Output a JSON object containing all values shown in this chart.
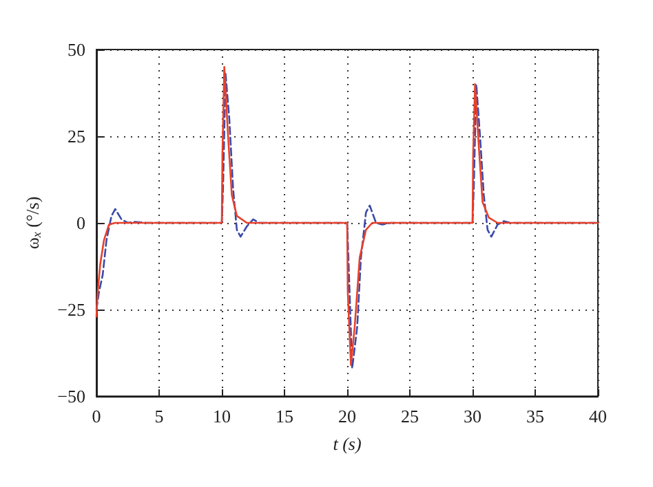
{
  "chart_data": {
    "type": "line",
    "xlabel": "t (s)",
    "ylabel": "ω$_{x}$ (°/s)",
    "xlim": [
      0,
      40
    ],
    "xticks": [
      0,
      5,
      10,
      15,
      20,
      25,
      30,
      35,
      40
    ],
    "ylim": [
      -50,
      50
    ],
    "yticks": [
      -50,
      -25,
      0,
      25,
      50
    ],
    "grid": true,
    "marker": "none",
    "series": [
      {
        "color": "#3b4aa8",
        "line_style": "dashed",
        "x": [
          0,
          0.2,
          0.5,
          0.8,
          1.2,
          1.5,
          2,
          2.5,
          3,
          4,
          10,
          10.1,
          10.3,
          10.6,
          10.9,
          11.2,
          11.5,
          12,
          12.5,
          13,
          20,
          20.1,
          20.4,
          20.8,
          21.1,
          21.5,
          21.8,
          22.3,
          22.8,
          23.5,
          30,
          30.1,
          30.3,
          30.6,
          30.9,
          31.2,
          31.5,
          32,
          32.5,
          33,
          40
        ],
        "values": [
          -25,
          -20,
          -15,
          -5,
          2,
          4,
          1,
          0,
          0.3,
          0,
          0,
          10,
          43,
          30,
          10,
          -2,
          -4,
          -1,
          1,
          0,
          0,
          -10,
          -42,
          -30,
          -10,
          3,
          5,
          0,
          -0.5,
          0,
          0,
          10,
          40,
          25,
          8,
          -2,
          -4,
          -0.5,
          0.5,
          0,
          0
        ]
      },
      {
        "color": "#e8402a",
        "line_style": "solid",
        "x": [
          0,
          0.1,
          0.3,
          0.6,
          1,
          1.5,
          10,
          10.05,
          10.2,
          10.5,
          10.8,
          11.2,
          12,
          20,
          20.05,
          20.3,
          20.6,
          21,
          21.5,
          22,
          30,
          30.05,
          30.2,
          30.5,
          30.8,
          31.3,
          32,
          40
        ],
        "values": [
          -27,
          -20,
          -12,
          -5,
          -0.5,
          0,
          0,
          20,
          45,
          25,
          8,
          2,
          0,
          0,
          -20,
          -41,
          -30,
          -10,
          -2,
          0,
          0,
          20,
          40,
          22,
          6,
          1.5,
          0,
          0
        ]
      }
    ]
  }
}
